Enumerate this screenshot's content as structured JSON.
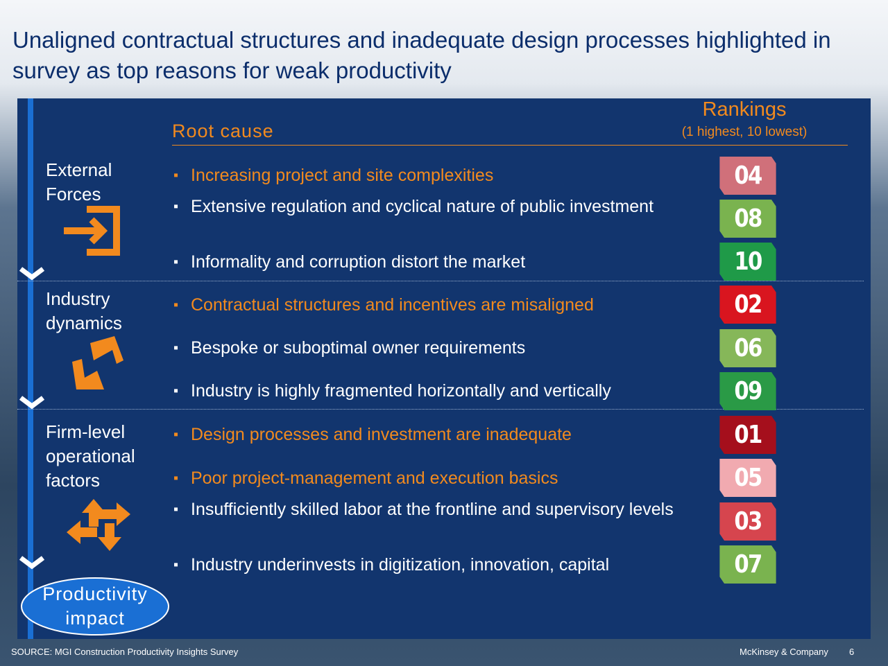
{
  "title": "Unaligned contractual structures and inadequate design processes highlighted in survey as top reasons for weak productivity",
  "header": {
    "root_cause": "Root cause",
    "rankings": "Rankings",
    "rankings_note": "(1 highest, 10 lowest)"
  },
  "groups": [
    {
      "label": "External Forces",
      "items": [
        {
          "text": "Increasing project and site complexities",
          "rank": "04",
          "rank_color": "#d0707a",
          "highlight": true
        },
        {
          "text": "Extensive regulation and cyclical nature of public investment",
          "rank": "08",
          "rank_color": "#7ab34f",
          "highlight": false
        },
        {
          "text": "Informality and corruption distort the market",
          "rank": "10",
          "rank_color": "#1f9a48",
          "highlight": false
        }
      ]
    },
    {
      "label": "Industry dynamics",
      "items": [
        {
          "text": "Contractual structures and incentives are misaligned",
          "rank": "02",
          "rank_color": "#d9151f",
          "highlight": true
        },
        {
          "text": "Bespoke or suboptimal owner requirements",
          "rank": "06",
          "rank_color": "#86b759",
          "highlight": false
        },
        {
          "text": "Industry is highly fragmented horizontally and vertically",
          "rank": "09",
          "rank_color": "#2a9a46",
          "highlight": false
        }
      ]
    },
    {
      "label": "Firm-level operational factors",
      "items": [
        {
          "text": "Design processes and investment are inadequate",
          "rank": "01",
          "rank_color": "#a50f1c",
          "highlight": true
        },
        {
          "text": "Poor project-management and execution basics",
          "rank": "05",
          "rank_color": "#f1aab0",
          "highlight": true
        },
        {
          "text": "Insufficiently skilled labor at the frontline and supervisory levels",
          "rank": "03",
          "rank_color": "#d6454e",
          "highlight": false
        },
        {
          "text": "Industry underinvests in digitization, innovation, capital",
          "rank": "07",
          "rank_color": "#7ab34f",
          "highlight": false
        }
      ]
    }
  ],
  "outcome": "Productivity impact",
  "footer": {
    "source": "SOURCE: MGI Construction Productivity Insights Survey",
    "company": "McKinsey & Company",
    "page": "6"
  }
}
